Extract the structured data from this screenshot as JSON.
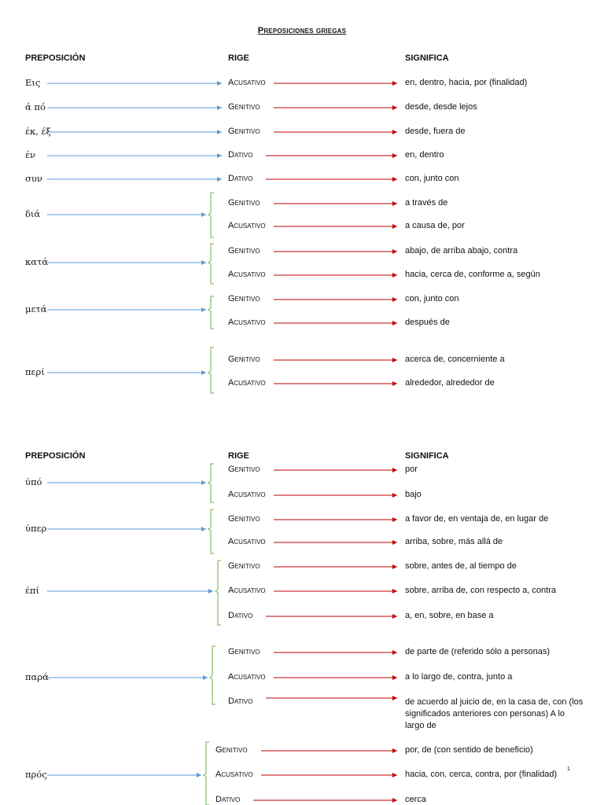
{
  "title": "Preposiciones griegas",
  "headers": {
    "preposicion": "PREPOSICIÓN",
    "rige": "RIGE",
    "significa": "SIGNIFICA"
  },
  "colors": {
    "blue_arrow": "#5b9bd5",
    "red_arrow": "#c00000",
    "bracket": "#70ad47"
  },
  "rows": [
    {
      "prep": "Εις",
      "cases": [
        {
          "case": "Acusativo",
          "meaning": "en, dentro, hacia, por (finalidad)"
        }
      ]
    },
    {
      "prep": "ά πό",
      "cases": [
        {
          "case": "Genitivo",
          "meaning": "desde, desde lejos"
        }
      ]
    },
    {
      "prep": "έκ, έξ",
      "cases": [
        {
          "case": "Genitivo",
          "meaning": "desde, fuera de"
        }
      ]
    },
    {
      "prep": "έν",
      "cases": [
        {
          "case": "Dativo",
          "meaning": "en, dentro"
        }
      ]
    },
    {
      "prep": "συν",
      "cases": [
        {
          "case": "Dativo",
          "meaning": "con, junto con"
        }
      ]
    },
    {
      "prep": "διά",
      "cases": [
        {
          "case": "Genitivo",
          "meaning": "a través de"
        },
        {
          "case": "Acusativo",
          "meaning": "a causa de, por"
        }
      ]
    },
    {
      "prep": "κατά",
      "cases": [
        {
          "case": "Genitivo",
          "meaning": "abajo, de arriba abajo, contra"
        },
        {
          "case": "Acusativo",
          "meaning": "hacia, cerca de, conforme a, según"
        }
      ]
    },
    {
      "prep": "μετά",
      "cases": [
        {
          "case": "Genitivo",
          "meaning": "con, junto con"
        },
        {
          "case": "Acusativo",
          "meaning": "después de"
        }
      ]
    },
    {
      "prep": "περί",
      "cases": [
        {
          "case": "Genitivo",
          "meaning": "acerca de, concerniente a"
        },
        {
          "case": "Acusativo",
          "meaning": "alrededor, alrededor de"
        }
      ]
    },
    {
      "prep": "ύπό",
      "cases": [
        {
          "case": "Genitivo",
          "meaning": "por"
        },
        {
          "case": "Acusativo",
          "meaning": "bajo"
        }
      ]
    },
    {
      "prep": "ύπερ",
      "cases": [
        {
          "case": "Genitivo",
          "meaning": "a favor de, en ventaja de, en lugar de"
        },
        {
          "case": "Acusativo",
          "meaning": "arriba, sobre, más allá de"
        }
      ]
    },
    {
      "prep": "έπί",
      "cases": [
        {
          "case": "Genitivo",
          "meaning": "sobre, antes de, al tiempo de"
        },
        {
          "case": "Acusativo",
          "meaning": "sobre, arriba de, con respecto a, contra"
        },
        {
          "case": "Dativo",
          "meaning": "a, en, sobre, en base a"
        }
      ]
    },
    {
      "prep": "παρά",
      "cases": [
        {
          "case": "Genitivo",
          "meaning": "de parte de (referido sólo a personas)"
        },
        {
          "case": "Acusativo",
          "meaning": "a lo largo de, contra, junto a"
        },
        {
          "case": "Dativo",
          "meaning": "de acuerdo al juicio de, en la casa de, con (los significados anteriores con personas) A lo largo de"
        }
      ]
    },
    {
      "prep": "πρός",
      "cases": [
        {
          "case": "Genitivo",
          "meaning": "por, de (con sentido de beneficio)"
        },
        {
          "case": "Acusativo",
          "meaning": "hacia, con, cerca, contra, por (finalidad)"
        },
        {
          "case": "Dativo",
          "meaning": "cerca"
        }
      ]
    }
  ],
  "footnote_mark": "1"
}
